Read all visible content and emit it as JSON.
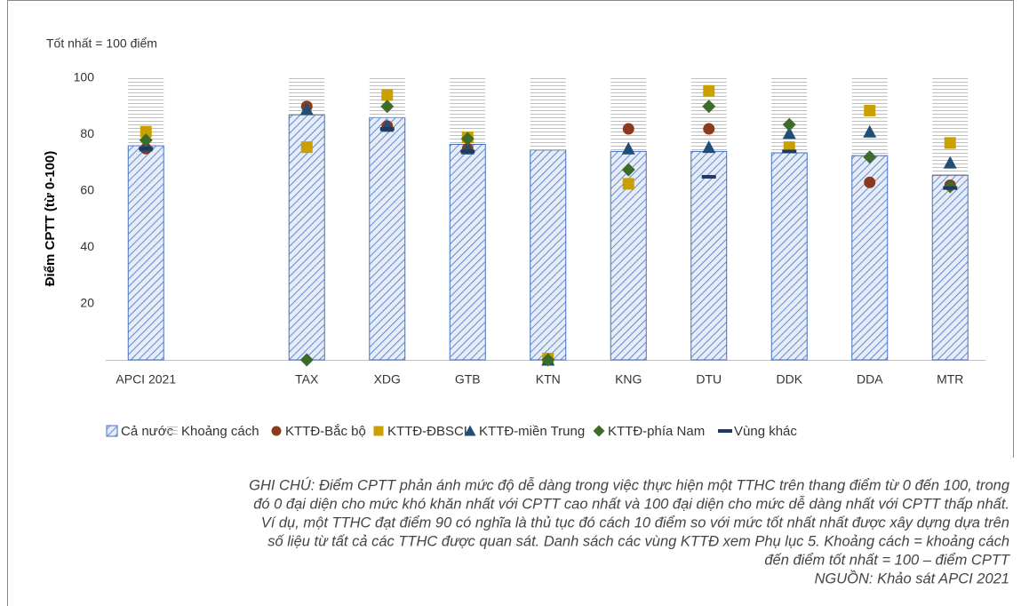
{
  "chart_data": {
    "type": "bar",
    "annotation": "Tốt nhất = 100 điểm",
    "y_label": "Điểm CPTT (từ 0-100)",
    "categories": [
      "APCI 2021",
      null,
      "TAX",
      "XDG",
      "GTB",
      "KTN",
      "KNG",
      "DTU",
      "DDK",
      "DDA",
      "MTR"
    ],
    "series": [
      {
        "name": "Cả nước",
        "marker": "hatch",
        "color": "#4472c4",
        "values": [
          76,
          null,
          87,
          86,
          76.5,
          74.5,
          74,
          74,
          73.5,
          72.5,
          65.5
        ]
      },
      {
        "name": "Khoảng cách",
        "marker": "lines",
        "stack": true,
        "color": "#bfbfbf",
        "values": [
          24,
          null,
          13,
          14,
          23.5,
          25.5,
          26,
          26,
          26.5,
          27.5,
          34.5
        ]
      },
      {
        "name": "KTTĐ-Bắc bộ",
        "marker": "circle",
        "color": "#8b3a1e",
        "values": [
          75,
          null,
          90,
          83,
          75,
          0,
          82,
          82,
          null,
          63,
          62
        ]
      },
      {
        "name": "KTTĐ-ĐBSCL",
        "marker": "square",
        "color": "#c9a000",
        "values": [
          81,
          null,
          75.5,
          94,
          79,
          0.5,
          62.5,
          95.5,
          75.5,
          88.5,
          77
        ]
      },
      {
        "name": "KTTĐ-miền Trung",
        "marker": "triangle",
        "color": "#1f4e79",
        "values": [
          76,
          null,
          89,
          83,
          75,
          0,
          75,
          75.5,
          80.5,
          81,
          70
        ]
      },
      {
        "name": "KTTĐ-phía Nam",
        "marker": "diamond",
        "color": "#3d6b2a",
        "values": [
          78,
          null,
          0,
          90,
          78.5,
          0,
          67.5,
          90,
          83.5,
          72,
          61.5
        ]
      },
      {
        "name": "Vùng khác",
        "marker": "dash",
        "color": "#1f3864",
        "values": [
          75,
          null,
          null,
          82,
          74,
          null,
          null,
          65,
          74,
          null,
          61
        ]
      }
    ],
    "ylim": [
      0,
      100
    ],
    "yticks": [
      20,
      40,
      60,
      80,
      100
    ],
    "note": [
      "GHI CHÚ: Điểm CPTT phản ánh mức độ dễ dàng trong việc thực hiện một TTHC trên thang điểm từ 0 đến 100, trong",
      "đó 0 đại diện cho mức khó khăn nhất với CPTT cao nhất và 100 đại diện cho mức dễ dàng nhất với CPTT thấp nhất.",
      "Ví dụ, một TTHC đạt điểm 90 có nghĩa là thủ tục đó cách 10 điểm so với mức tốt nhất nhất được xây dựng dựa trên",
      "số liệu từ tất cả các TTHC được quan sát. Danh sách các vùng KTTĐ xem Phụ lục 5. Khoảng cách = khoảng cách",
      "đến điểm tốt nhất = 100 – điểm CPTT"
    ],
    "source": "NGUỒN: Khảo sát APCI 2021"
  }
}
